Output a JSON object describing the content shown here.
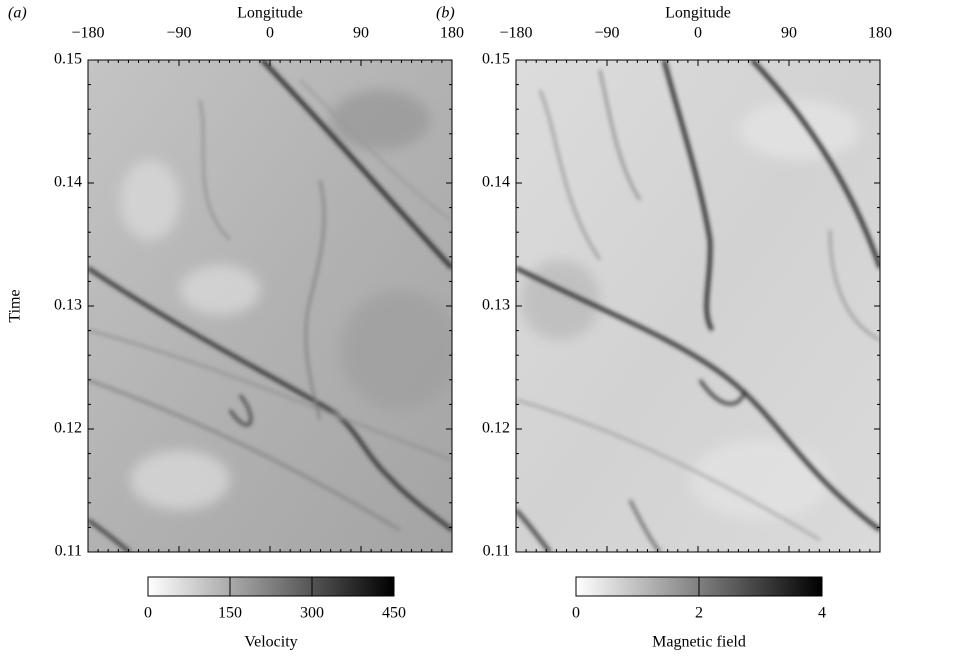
{
  "chart_data": [
    {
      "type": "heatmap",
      "panel_label": "(a)",
      "x_label": "Longitude",
      "y_label": "Time",
      "xlim": [
        -180,
        180
      ],
      "xticks": [
        {
          "value": -180,
          "label": "−180"
        },
        {
          "value": -90,
          "label": "−90"
        },
        0,
        90,
        180
      ],
      "ylim": [
        0.11,
        0.15
      ],
      "yticks": [
        0.11,
        0.12,
        0.13,
        0.14,
        0.15
      ],
      "colorbar": {
        "label": "Velocity",
        "lim": [
          0,
          450
        ],
        "ticks": [
          0,
          150,
          300,
          450
        ],
        "colors": [
          "#ffffff",
          "#000000"
        ]
      }
    },
    {
      "type": "heatmap",
      "panel_label": "(b)",
      "x_label": "Longitude",
      "xlim": [
        -180,
        180
      ],
      "xticks": [
        {
          "value": -180,
          "label": "−180"
        },
        {
          "value": -90,
          "label": "−90"
        },
        0,
        90,
        180
      ],
      "ylim": [
        0.11,
        0.15
      ],
      "yticks": [
        0.11,
        0.12,
        0.13,
        0.14,
        0.15
      ],
      "colorbar": {
        "label": "Magnetic field",
        "lim": [
          0,
          4
        ],
        "ticks": [
          0,
          2,
          4
        ],
        "colors": [
          "#ffffff",
          "#000000"
        ]
      }
    }
  ]
}
